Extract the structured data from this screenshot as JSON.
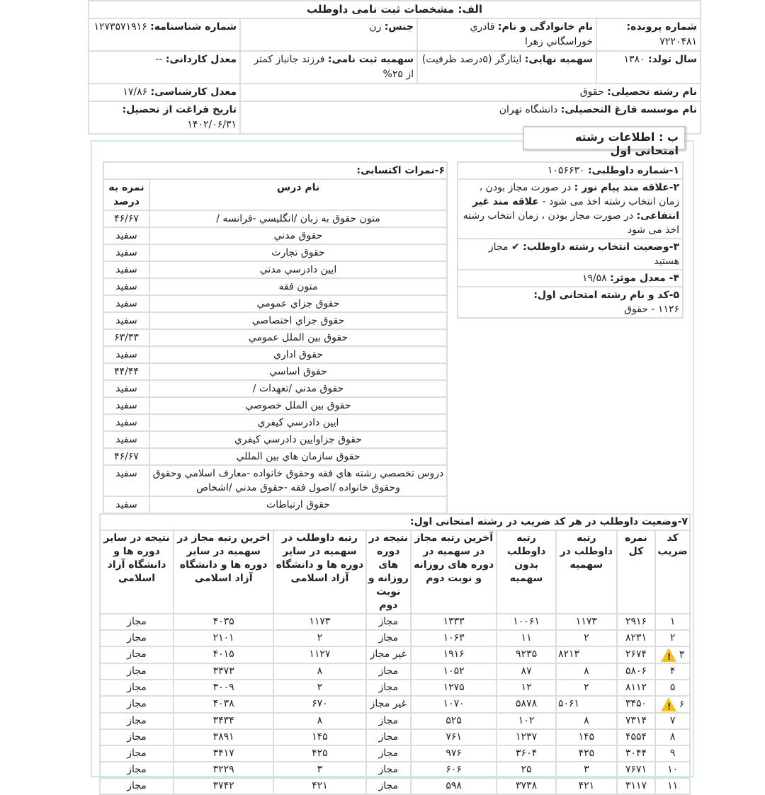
{
  "section_a": {
    "title": "الف: مشخصات ثبت نامی داوطلب",
    "file_no_label": "شماره پرونده:",
    "file_no": "۷۲۲۰۴۸۱",
    "name_label": "نام خانوادگی و نام:",
    "name": "قادري خوراسگاني زهرا",
    "gender_label": "جنس:",
    "gender": "زن",
    "id_label": "شماره شناسنامه:",
    "id": "۱۲۷۳۵۷۱۹۱۶",
    "birth_label": "سال تولد:",
    "birth": "۱۳۸۰",
    "final_quota_label": "سهمیه نهایی:",
    "final_quota": "ایثارگر (۵درصد ظرفیت)",
    "reg_quota_label": "سهمیه ثبت نامی:",
    "reg_quota": "فرزند جانباز کمتر از ۲۵%",
    "associate_gpa_label": "معدل کاردانی:",
    "associate_gpa": "--",
    "field_label": "نام رشته تحصیلی:",
    "field": "حقوق",
    "bachelor_gpa_label": "معدل کارشناسی:",
    "bachelor_gpa": "۱۷/۸۶",
    "uni_label": "نام موسسه فارغ التحصیلی:",
    "uni": "دانشگاه تهران",
    "grad_date_label": "تاریخ فراغت از تحصیل:",
    "grad_date": "۱۴۰۲/۰۶/۳۱"
  },
  "section_b": {
    "title": "ب : اطلاعات رشته امتحانی اول",
    "applicant_no_label": "۱-شماره داوطلبی:",
    "applicant_no": "۱۰۵۶۶۳۰",
    "pnu_label": "۲-علاقه مند پیام نور :",
    "pnu_text": "در صورت مجاز بودن ، زمان انتخاب رشته اخذ می شود -",
    "nonprofit_label": "علاقه مند غیر انتفاعی:",
    "nonprofit_text": "در صورت مجاز بودن ، زمان انتخاب رشته اخذ می شود",
    "status_label": "۳-وضعیت انتخاب رشته داوطلب:",
    "status": "مجاز هستید",
    "gpa_label": "۴- معدل موثر:",
    "gpa": "۱۹/۵۸",
    "code_label": "۵-کد و نام رشته امتحانی اول:",
    "code": "۱۱۲۶ - حقوق"
  },
  "grades": {
    "title": "۶-نمرات اکتسابی:",
    "col_course": "نام درس",
    "col_score": "نمره به درصد",
    "rows": [
      [
        "متون حقوق به زبان /انگلیسي -فرانسه /",
        "۴۶/۶۷"
      ],
      [
        "حقوق مدني",
        "سفید"
      ],
      [
        "حقوق تجارت",
        "سفید"
      ],
      [
        "ايين دادرسي مدني",
        "سفید"
      ],
      [
        "متون فقه",
        "سفید"
      ],
      [
        "حقوق جزاي عمومي",
        "سفید"
      ],
      [
        "حقوق جزاي اختصاصي",
        "سفید"
      ],
      [
        "حقوق بين الملل عمومي",
        "۶۳/۳۳"
      ],
      [
        "حقوق اداري",
        "سفید"
      ],
      [
        "حقوق اساسي",
        "۴۴/۴۴"
      ],
      [
        "حقوق مدني /تعهدات /",
        "سفید"
      ],
      [
        "حقوق بين الملل خصوصي",
        "سفید"
      ],
      [
        "ايين دادرسي كيفري",
        "سفید"
      ],
      [
        "حقوق جزاوايين دادرسي كيفري",
        "سفید"
      ],
      [
        "حقوق سازمان هاي بين المللي",
        "۴۶/۶۷"
      ],
      [
        "دروس تخصصي رشته هاي فقه وحقوق خانواده -معارف اسلامي وحقوق وحقوق خانواده /اصول فقه -حقوق مدني /اشخاص",
        "سفید"
      ],
      [
        "حقوق ارتباطات",
        "سفید"
      ]
    ]
  },
  "status_table": {
    "title": "۷-وضعیت داوطلب در هر کد ضریب در رشته امتحانی اول:",
    "headers": [
      "کد ضریب",
      "نمره کل",
      "رتبه داوطلب در سهمیه",
      "رتبه داوطلب بدون سهمیه",
      "آخرین رتبه مجاز در سهمیه در دوره های روزانه و نوبت دوم",
      "نتیجه در دوره های روزانه و نوبت دوم",
      "رتبه داوطلب در سهمیه در سایر دوره ها و دانشگاه آزاد اسلامی",
      "اخرین رتبه مجاز در سهمیه در سایر دوره ها و دانشگاه آزاد اسلامی",
      "نتیجه در سایر دوره ها و دانشگاه آزاد اسلامی"
    ],
    "warning_color": "#f2c21b",
    "rows": [
      {
        "code": "۱",
        "warn": false,
        "c": [
          "۲۹۱۶",
          "۱۱۷۳",
          "۱۰۰۶۱",
          "۱۳۳۳",
          "مجاز",
          "۱۱۷۳",
          "۴۰۳۵",
          "مجاز"
        ]
      },
      {
        "code": "۲",
        "warn": false,
        "c": [
          "۸۲۳۱",
          "۲",
          "۱۱",
          "۱۰۶۳",
          "مجاز",
          "۲",
          "۲۱۰۱",
          "مجاز"
        ]
      },
      {
        "code": "۳",
        "warn": true,
        "c": [
          "۲۶۷۴",
          "۸۲۱۳",
          "۹۲۳۵",
          "۱۹۱۶",
          "غیر مجاز",
          "۱۱۲۷",
          "۴۰۱۵",
          "مجاز"
        ]
      },
      {
        "code": "۴",
        "warn": false,
        "c": [
          "۵۸۰۶",
          "۸",
          "۸۷",
          "۱۰۵۲",
          "مجاز",
          "۸",
          "۳۳۷۳",
          "مجاز"
        ]
      },
      {
        "code": "۵",
        "warn": false,
        "c": [
          "۸۱۱۲",
          "۲",
          "۱۲",
          "۱۲۷۵",
          "مجاز",
          "۲",
          "۳۰۰۹",
          "مجاز"
        ]
      },
      {
        "code": "۶",
        "warn": true,
        "c": [
          "۳۴۵۰",
          "۵۰۶۱",
          "۵۸۷۸",
          "۱۰۷۰",
          "غیر مجاز",
          "۶۷۰",
          "۴۰۳۸",
          "مجاز"
        ]
      },
      {
        "code": "۷",
        "warn": false,
        "c": [
          "۷۳۱۴",
          "۸",
          "۱۰۲",
          "۵۲۵",
          "مجاز",
          "۸",
          "۳۴۳۴",
          "مجاز"
        ]
      },
      {
        "code": "۸",
        "warn": false,
        "c": [
          "۴۵۵۴",
          "۱۴۵",
          "۱۲۳۷",
          "۷۶۱",
          "مجاز",
          "۱۴۵",
          "۳۸۹۱",
          "مجاز"
        ]
      },
      {
        "code": "۹",
        "warn": false,
        "c": [
          "۳۰۴۴",
          "۴۲۵",
          "۳۶۰۴",
          "۹۷۶",
          "مجاز",
          "۴۲۵",
          "۳۴۱۷",
          "مجاز"
        ]
      },
      {
        "code": "۱۰",
        "warn": false,
        "c": [
          "۷۶۷۱",
          "۳",
          "۲۵",
          "۶۰۶",
          "مجاز",
          "۳",
          "۳۲۲۹",
          "مجاز"
        ]
      },
      {
        "code": "۱۱",
        "warn": false,
        "c": [
          "۳۱۱۷",
          "۴۲۱",
          "۳۷۳۸",
          "۵۹۸",
          "مجاز",
          "۴۲۱",
          "۳۷۴۲",
          "مجاز"
        ]
      }
    ]
  }
}
